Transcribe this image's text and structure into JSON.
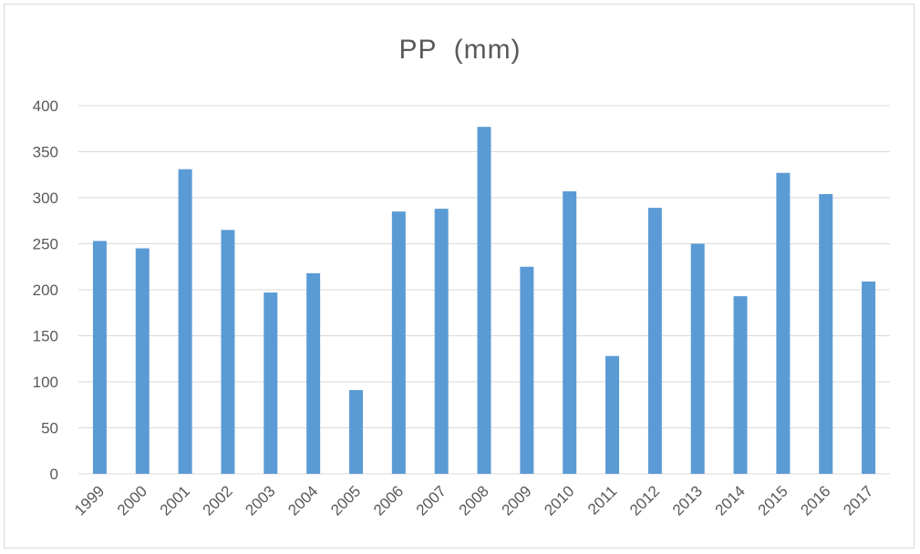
{
  "chart_data": {
    "type": "bar",
    "title": "PP  (mm)",
    "xlabel": "",
    "ylabel": "",
    "ylim": [
      0,
      400
    ],
    "yticks": [
      0,
      50,
      100,
      150,
      200,
      250,
      300,
      350,
      400
    ],
    "grid": true,
    "legend": "none",
    "categories": [
      "1999",
      "2000",
      "2001",
      "2002",
      "2003",
      "2004",
      "2005",
      "2006",
      "2007",
      "2008",
      "2009",
      "2010",
      "2011",
      "2012",
      "2013",
      "2014",
      "2015",
      "2016",
      "2017"
    ],
    "values": [
      253,
      245,
      331,
      265,
      197,
      218,
      91,
      285,
      288,
      377,
      225,
      307,
      128,
      289,
      250,
      193,
      327,
      304,
      209
    ],
    "colors": {
      "bar": "#5b9bd5",
      "grid": "#d9d9d9",
      "text": "#595959"
    }
  }
}
